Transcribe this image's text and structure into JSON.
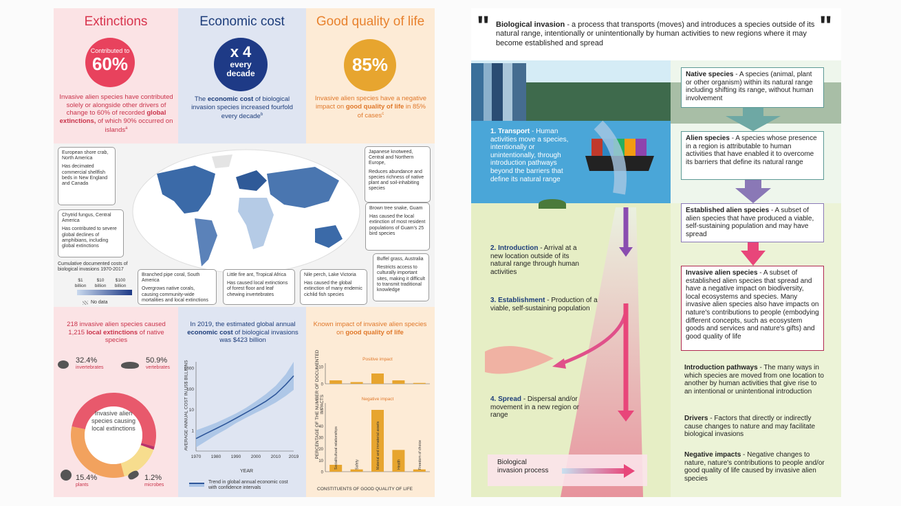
{
  "left": {
    "extinctions": {
      "heading": "Extinctions",
      "circle_top": "Contributed to",
      "circle_value": "60%",
      "text_a": "Invasive alien species have contributed solely or alongside other drivers of change to 60% of recorded",
      "text_bold": "global extinctions,",
      "text_b": "of which 90% occurred on islands",
      "sup": "a"
    },
    "economic": {
      "heading": "Economic cost",
      "circle_value": "x 4",
      "circle_l2": "every",
      "circle_l3": "decade",
      "text_a": "The",
      "text_bold": "economic cost",
      "text_b": "of biological invasion species increased fourfold every decade",
      "sup": "b"
    },
    "quality": {
      "heading": "Good quality of life",
      "circle_value": "85%",
      "text_a": "Invasive alien species have a negative impact on",
      "text_bold": "good quality of life",
      "text_b": "in 85% of cases",
      "sup": "c"
    },
    "callouts": {
      "crab": {
        "name": "European shore crab, North America",
        "desc": "Has decimated commercial shellfish beds in New England and Canada"
      },
      "chytrid": {
        "name": "Chytrid fungus, Central America",
        "desc": "Has contributed to severe global declines of amphibians, including global extinctions"
      },
      "knotweed": {
        "name": "Japanese knotweed, Central and Northern Europe,",
        "desc": "Reduces abundance and species richness of native plant and soil-inhabiting species"
      },
      "snake": {
        "name": "Brown tree snake, Guam",
        "desc": "Has caused the local extinction of most resident populations of Guam's 25 bird species"
      },
      "buffel": {
        "name": "Buffel grass, Australia",
        "desc": "Restricts access to culturally important sites, making it difficult to transmit traditional knowledge"
      },
      "coral": {
        "name": "Branched pipe coral, South America",
        "desc": "Overgrows native corals, causing community-wide mortalities and local extinctions"
      },
      "ant": {
        "name": "Little fire ant, Tropical Africa",
        "desc": "Has caused local extinctions of forest floor and leaf chewing invertebrates"
      },
      "perch": {
        "name": "Nile perch, Lake Victoria",
        "desc": "Has caused the global extinction of many endemic cichlid fish species"
      }
    },
    "map_legend": {
      "title": "Cumulative documented costs of biological invasions 1970-2017",
      "l1": "$1 billion",
      "l2": "$10 billion",
      "l3": "$100 billion",
      "nodata": "No data"
    },
    "donut": {
      "title_a": "218 invasive alien species caused 1,215",
      "title_bold": "local extinctions",
      "title_b": "of native species",
      "center": "Invasive alien species causing local extinctions",
      "segments": [
        {
          "pct": "32.4%",
          "label": "invertebrates",
          "value": 32.4,
          "color": "#f2a25e"
        },
        {
          "pct": "50.9%",
          "label": "vertebrates",
          "value": 50.9,
          "color": "#e8596c"
        },
        {
          "pct": "1.2%",
          "label": "microbes",
          "value": 1.2,
          "color": "#b8326a"
        },
        {
          "pct": "15.4%",
          "label": "plants",
          "value": 15.4,
          "color": "#f7dd8e"
        }
      ]
    },
    "cost_chart": {
      "title_a": "In 2019, the estimated global annual",
      "title_bold": "economic cost",
      "title_b": "of biological invasions was $423 billion",
      "ylabel": "AVERAGE ANNUAL COST IN US$ BILLIONS",
      "xlabel": "YEAR",
      "yticks": [
        "1000",
        "100",
        "10",
        "1"
      ],
      "xticks": [
        "1970",
        "1980",
        "1990",
        "2000",
        "2010",
        "2019"
      ],
      "legend": "Trend in global annual economic cost with confidence intervals"
    },
    "impact_chart": {
      "title_a": "Known impact of invasive alien species on",
      "title_bold": "good quality of life",
      "positive_label": "Positive impact",
      "negative_label": "Negative impact",
      "ylabel": "PERCENTAGE OF THE NUMBER OF DOCUMENTED IMPACTS",
      "xlabel": "CONSTITUENTS OF GOOD QUALITY OF LIFE",
      "pos_ticks": [
        "10",
        "0"
      ],
      "neg_ticks": [
        "40",
        "30",
        "20",
        "10",
        "0"
      ]
    }
  },
  "chart_data": [
    {
      "type": "line",
      "title": "In 2019, the estimated global annual economic cost of biological invasions was $423 billion",
      "xlabel": "YEAR",
      "ylabel": "AVERAGE ANNUAL COST IN US$ BILLIONS",
      "yscale": "log",
      "ylim": [
        0.1,
        2000
      ],
      "xlim": [
        1970,
        2019
      ],
      "series": [
        {
          "name": "Trend in global annual economic cost with confidence intervals",
          "x": [
            1970,
            1975,
            1980,
            1985,
            1990,
            1995,
            2000,
            2005,
            2010,
            2015,
            2019
          ],
          "y": [
            0.4,
            0.7,
            1.2,
            2.1,
            3.8,
            7,
            13,
            25,
            55,
            160,
            423
          ],
          "lower": [
            0.15,
            0.3,
            0.6,
            1.1,
            2.2,
            4,
            7,
            12,
            22,
            45,
            90
          ],
          "upper": [
            1.0,
            1.5,
            2.3,
            3.8,
            6.5,
            12,
            25,
            55,
            140,
            500,
            2000
          ]
        }
      ]
    },
    {
      "type": "bar",
      "title": "Known impact of invasive alien species on good quality of life",
      "xlabel": "CONSTITUENTS OF GOOD QUALITY OF LIFE",
      "ylabel": "PERCENTAGE OF THE NUMBER OF DOCUMENTED IMPACTS",
      "categories": [
        "Social/cultural relationships",
        "Safety",
        "Material and immaterial assets",
        "Health",
        "Freedom of choice"
      ],
      "series": [
        {
          "name": "Positive impact",
          "values": [
            2,
            1,
            6,
            2,
            0.5
          ]
        },
        {
          "name": "Negative impact",
          "values": [
            6,
            2,
            54,
            19,
            2
          ]
        }
      ]
    }
  ],
  "right": {
    "definition_bold": "Biological invasion",
    "definition_text": "- a process that transports (moves) and introduces a species outside of its natural range, intentionally or unintentionally by human activities to new regions where it may become established and spread",
    "steps": {
      "s1_bold": "1. Transport",
      "s1_text": "- Human activities move a species, intentionally or unintentionally, through introduction pathways beyond the barriers that define its natural range",
      "s2_bold": "2. Introduction",
      "s2_text": "- Arrival at a new location outside of its natural range through human activities",
      "s3_bold": "3. Establishment",
      "s3_text": "- Production of a viable, self-sustaining population",
      "s4_bold": "4. Spread",
      "s4_text": "- Dispersal and/or movement in a new region or range"
    },
    "process_label": "Biological invasion process",
    "boxes": {
      "native_bold": "Native species",
      "native_text": "- A species (animal, plant or other organism) within its natural range including shifting its range, without human involvement",
      "alien_bold": "Alien species",
      "alien_text": "- A species whose presence in a region is attributable to human activities that have enabled it to overcome its barriers that define its natural range",
      "established_bold": "Established alien species",
      "established_text": "- A subset of alien species that have produced a viable, self-sustaining population and may have spread",
      "invasive_bold": "Invasive alien species",
      "invasive_text": "- A subset of established alien species that spread and have a negative impact on biodiversity, local ecosystems and species. Many invasive alien species also have impacts on nature's contributions to people (embodying different concepts, such as ecosystem goods and services and nature's gifts) and good quality of life"
    },
    "glossary": {
      "pathways_bold": "Introduction pathways",
      "pathways_text": "- The many ways in which species are moved from one location to another by human activities that give rise to an intentional or unintentional introduction",
      "drivers_bold": "Drivers",
      "drivers_text": "- Factors that directly or indirectly cause changes to nature and may facilitate biological invasions",
      "negative_bold": "Negative impacts",
      "negative_text": "- Negative changes to nature, nature's contributions to people and/or good quality of life caused by invasive alien species"
    },
    "colors": {
      "native": "#6ea8a4",
      "alien": "#8a78b6",
      "established": "#c95a8d",
      "invasive": "#e8467a"
    }
  }
}
